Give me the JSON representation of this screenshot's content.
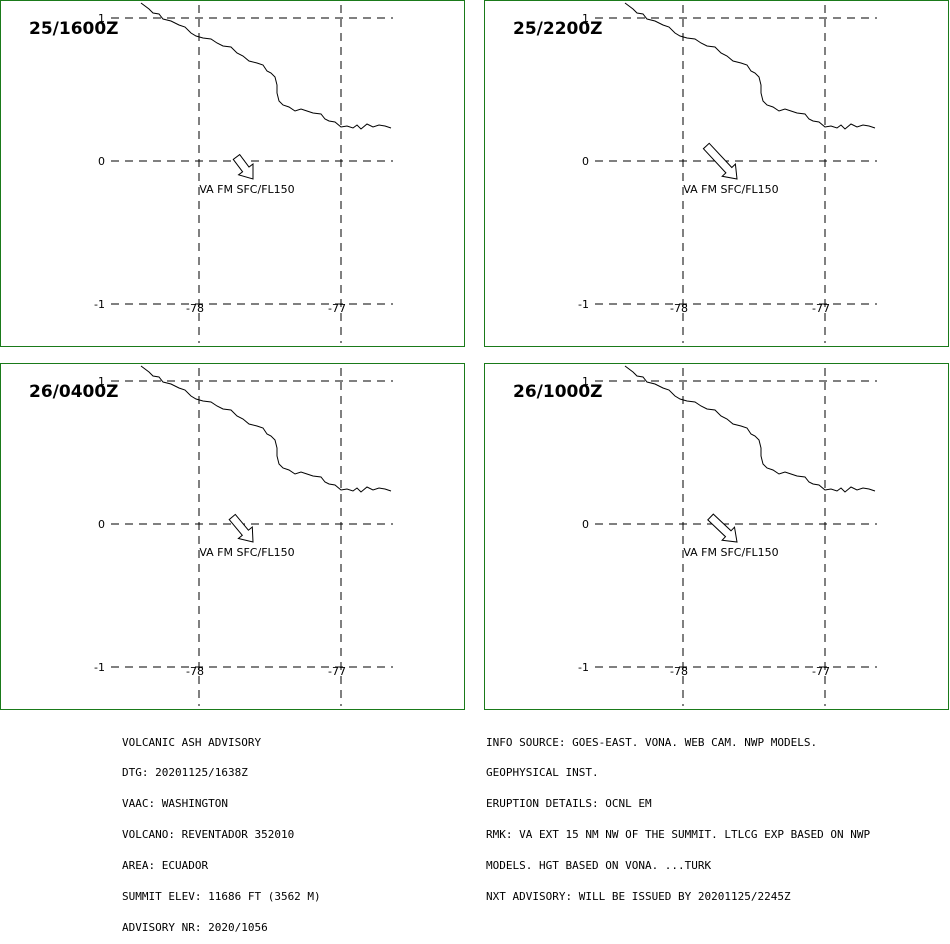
{
  "panels": [
    {
      "time": "25/1600Z",
      "label": "VA FM SFC/FL150",
      "arrow_lon": -77.75
    },
    {
      "time": "25/2200Z",
      "label": "VA FM SFC/FL150",
      "arrow_lon": -77.85
    },
    {
      "time": "26/0400Z",
      "label": "VA FM SFC/FL150",
      "arrow_lon": -77.78
    },
    {
      "time": "26/1000Z",
      "label": "VA FM SFC/FL150",
      "arrow_lon": -77.82
    }
  ],
  "ticks": {
    "lat": [
      "1",
      "0",
      "-1"
    ],
    "lon": [
      "-78",
      "-77"
    ]
  },
  "advisory_left": [
    "VOLCANIC ASH ADVISORY",
    "DTG: 20201125/1638Z",
    "VAAC: WASHINGTON",
    "VOLCANO: REVENTADOR 352010",
    "AREA: ECUADOR",
    "SUMMIT ELEV: 11686 FT (3562 M)",
    "ADVISORY NR: 2020/1056"
  ],
  "advisory_right": [
    "INFO SOURCE: GOES-EAST. VONA. WEB CAM. NWP MODELS.",
    "GEOPHYSICAL INST.",
    "ERUPTION DETAILS: OCNL EM",
    "RMK: VA EXT 15 NM NW OF THE SUMMIT. LTLCG EXP BASED ON NWP",
    "MODELS. HGT BASED ON VONA. ...TURK",
    "NXT ADVISORY: WILL BE ISSUED BY 20201125/2245Z"
  ],
  "colors": {
    "panel_border": "#1a7a1a",
    "lines": "#000000",
    "background": "#ffffff"
  }
}
